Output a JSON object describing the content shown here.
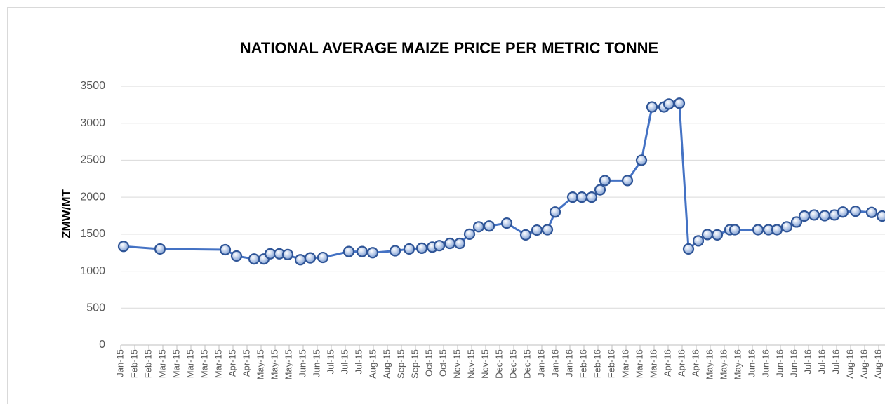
{
  "chart_data": {
    "type": "line",
    "title": "NATIONAL AVERAGE MAIZE PRICE PER METRIC TONNE",
    "y_label": "ZMW/MT",
    "xlim": [
      0,
      54.45
    ],
    "xticks": [
      {
        "value": 0,
        "label": "Jan-15"
      },
      {
        "value": 1,
        "label": "Feb-15"
      },
      {
        "value": 2,
        "label": "Feb-15"
      },
      {
        "value": 3,
        "label": "Mar-15"
      },
      {
        "value": 4,
        "label": "Mar-15"
      },
      {
        "value": 5,
        "label": "Mar-15"
      },
      {
        "value": 6,
        "label": "Mar-15"
      },
      {
        "value": 7,
        "label": "Mar-15"
      },
      {
        "value": 8,
        "label": "Apr-15"
      },
      {
        "value": 9,
        "label": "Apr-15"
      },
      {
        "value": 10,
        "label": "May-15"
      },
      {
        "value": 11,
        "label": "May-15"
      },
      {
        "value": 12,
        "label": "May-15"
      },
      {
        "value": 13,
        "label": "Jun-15"
      },
      {
        "value": 14,
        "label": "Jun-15"
      },
      {
        "value": 15,
        "label": "Jul-15"
      },
      {
        "value": 16,
        "label": "Jul-15"
      },
      {
        "value": 17,
        "label": "Jul-15"
      },
      {
        "value": 18,
        "label": "Aug-15"
      },
      {
        "value": 19,
        "label": "Aug-15"
      },
      {
        "value": 20,
        "label": "Sep-15"
      },
      {
        "value": 21,
        "label": "Sep-15"
      },
      {
        "value": 22,
        "label": "Oct-15"
      },
      {
        "value": 23,
        "label": "Oct-15"
      },
      {
        "value": 24,
        "label": "Nov-15"
      },
      {
        "value": 25,
        "label": "Nov-15"
      },
      {
        "value": 26,
        "label": "Nov-15"
      },
      {
        "value": 27,
        "label": "Dec-15"
      },
      {
        "value": 28,
        "label": "Dec-15"
      },
      {
        "value": 29,
        "label": "Dec-15"
      },
      {
        "value": 30,
        "label": "Jan-16"
      },
      {
        "value": 31,
        "label": "Jan-16"
      },
      {
        "value": 32,
        "label": "Jan-16"
      },
      {
        "value": 33,
        "label": "Feb-16"
      },
      {
        "value": 34,
        "label": "Feb-16"
      },
      {
        "value": 35,
        "label": "Feb-16"
      },
      {
        "value": 36,
        "label": "Mar-16"
      },
      {
        "value": 37,
        "label": "Mar-16"
      },
      {
        "value": 38,
        "label": "Mar-16"
      },
      {
        "value": 39,
        "label": "Apr-16"
      },
      {
        "value": 40,
        "label": "Apr-16"
      },
      {
        "value": 41,
        "label": "Apr-16"
      },
      {
        "value": 42,
        "label": "May-16"
      },
      {
        "value": 43,
        "label": "May-16"
      },
      {
        "value": 44,
        "label": "May-16"
      },
      {
        "value": 45,
        "label": "Jun-16"
      },
      {
        "value": 46,
        "label": "Jun-16"
      },
      {
        "value": 47,
        "label": "Jun-16"
      },
      {
        "value": 48,
        "label": "Jun-16"
      },
      {
        "value": 49,
        "label": "Jul-16"
      },
      {
        "value": 50,
        "label": "Jul-16"
      },
      {
        "value": 51,
        "label": "Jul-16"
      },
      {
        "value": 52,
        "label": "Aug-16"
      },
      {
        "value": 53,
        "label": "Aug-16"
      },
      {
        "value": 54,
        "label": "Aug-16"
      }
    ],
    "ylim": [
      0,
      3500
    ],
    "yticks": [
      0,
      500,
      1000,
      1500,
      2000,
      2500,
      3000,
      3500
    ],
    "grid": true,
    "x": [
      0.2,
      2.8,
      7.45,
      8.25,
      9.5,
      10.2,
      10.65,
      11.3,
      11.9,
      12.8,
      13.5,
      14.4,
      16.25,
      17.2,
      17.95,
      19.55,
      20.55,
      21.45,
      22.2,
      22.7,
      23.45,
      24.15,
      24.85,
      25.5,
      26.25,
      27.5,
      28.85,
      29.65,
      30.4,
      30.95,
      32.2,
      32.85,
      33.55,
      34.15,
      34.5,
      36.1,
      37.1,
      37.85,
      38.7,
      39.05,
      39.8,
      40.45,
      41.15,
      41.8,
      42.5,
      43.4,
      43.75,
      45.4,
      46.15,
      46.75,
      47.45,
      48.15,
      48.7,
      49.4,
      50.15,
      50.85,
      51.45,
      52.35,
      53.5,
      54.25
    ],
    "series": [
      {
        "color": "#4472c4",
        "values": [
          1335,
          1300,
          1290,
          1205,
          1165,
          1165,
          1235,
          1235,
          1225,
          1155,
          1180,
          1185,
          1265,
          1265,
          1250,
          1275,
          1300,
          1310,
          1325,
          1345,
          1375,
          1375,
          1500,
          1600,
          1610,
          1650,
          1490,
          1555,
          1560,
          1800,
          2000,
          2000,
          2000,
          2100,
          2225,
          2225,
          2500,
          3220,
          3220,
          3260,
          3270,
          1300,
          1410,
          1495,
          1490,
          1560,
          1560,
          1560,
          1560,
          1560,
          1600,
          1665,
          1745,
          1760,
          1750,
          1760,
          1800,
          1810,
          1795,
          1745
        ]
      }
    ]
  }
}
